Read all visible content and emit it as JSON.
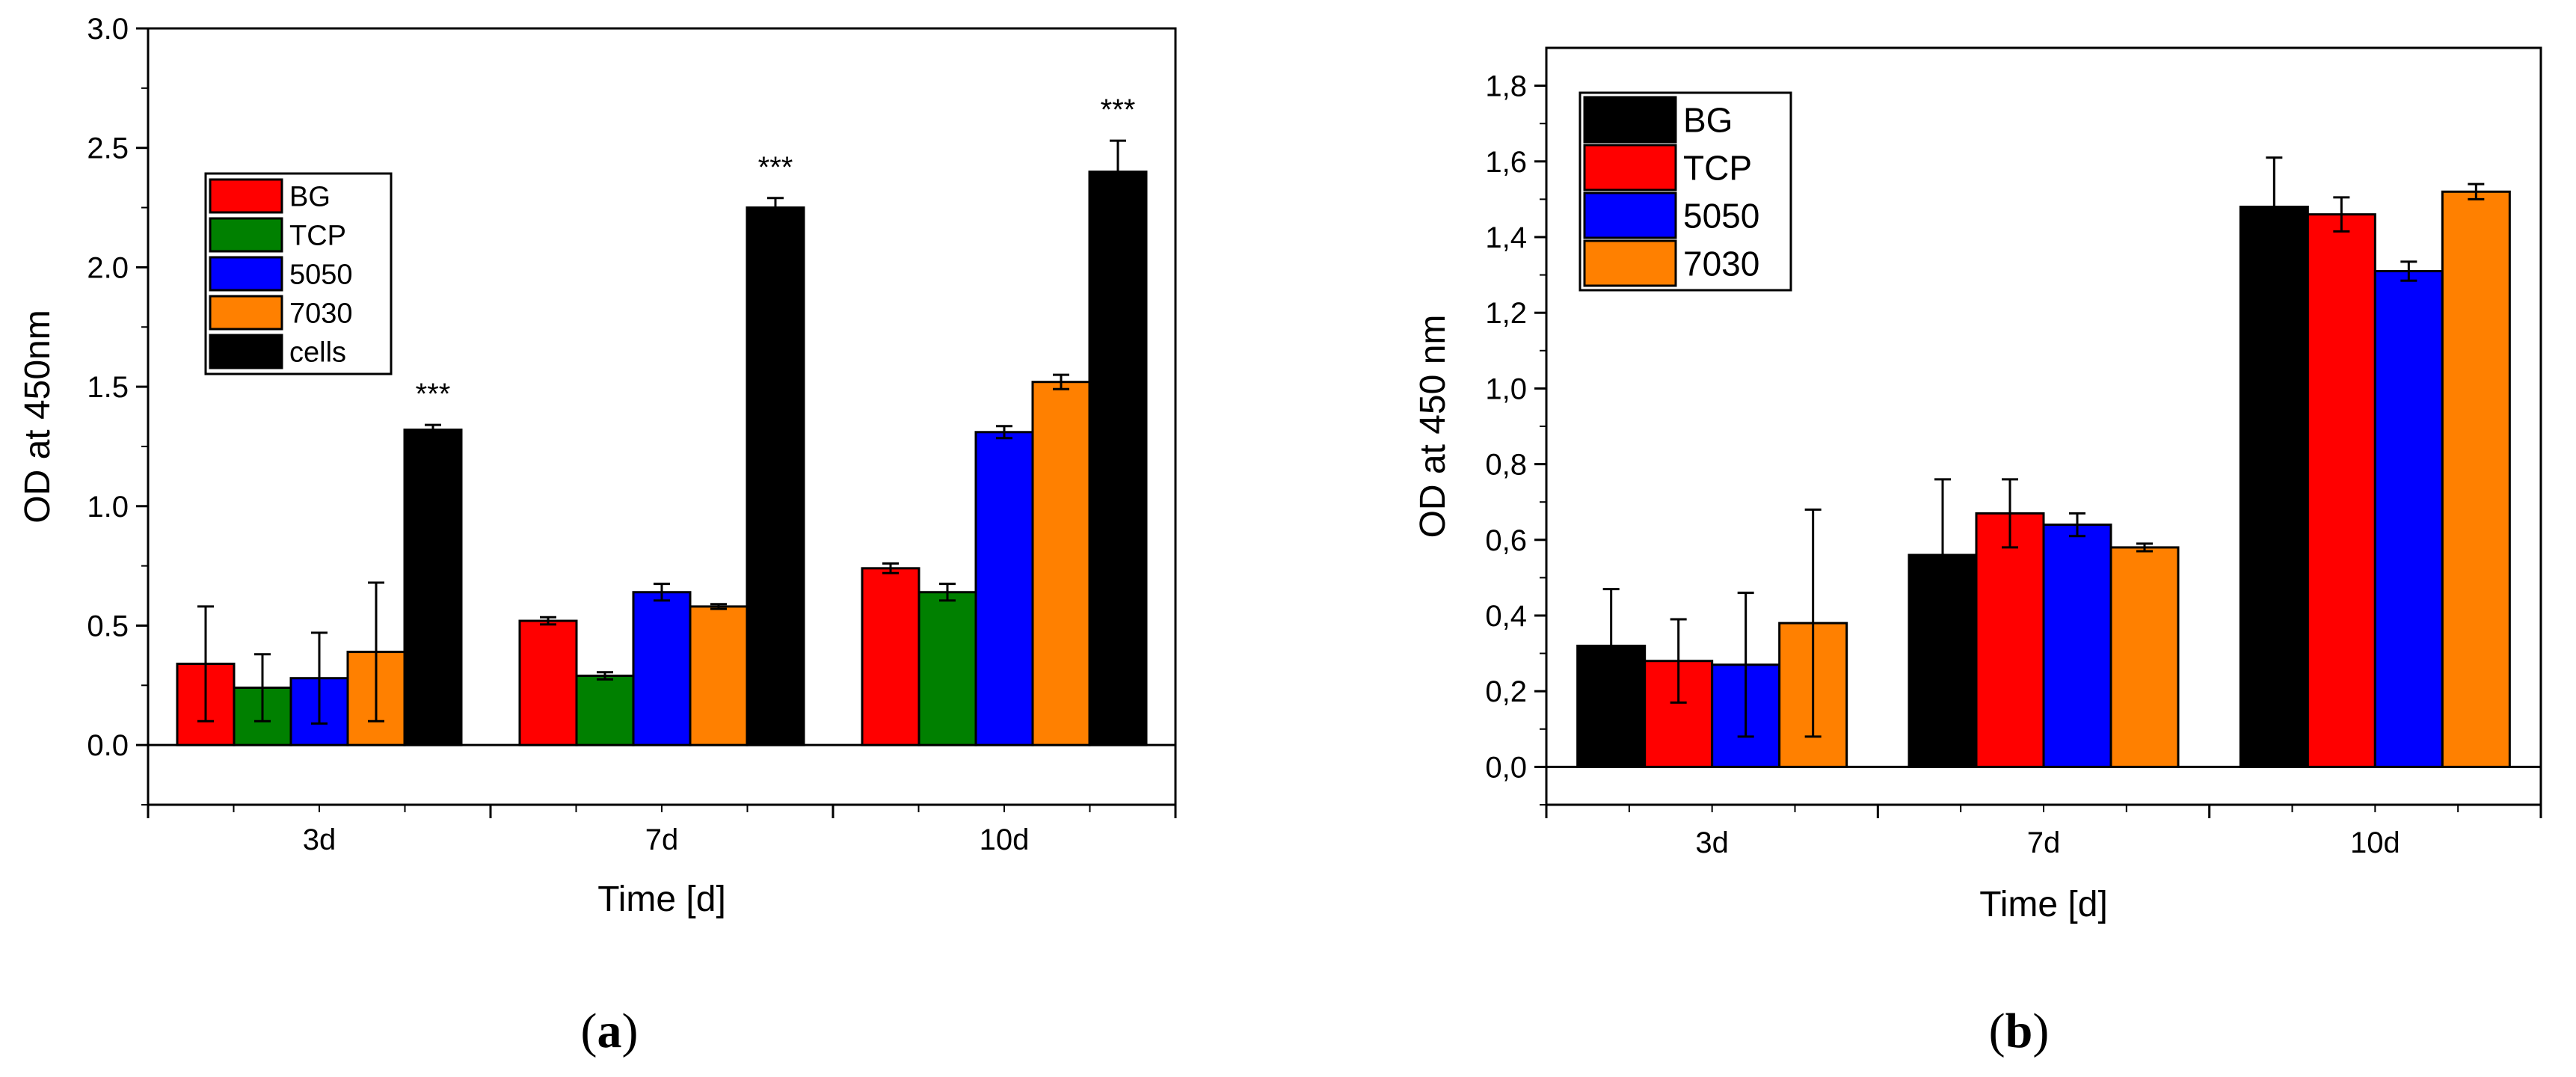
{
  "chart_data": [
    {
      "id": "a",
      "type": "bar",
      "panel_label": "a",
      "xlabel": "Time [d]",
      "ylabel": "OD at 450nm",
      "categories": [
        "3d",
        "7d",
        "10d"
      ],
      "ylim": [
        -0.25,
        3.0
      ],
      "yticks": [
        0.0,
        0.5,
        1.0,
        1.5,
        2.0,
        2.5,
        3.0
      ],
      "ytick_labels": [
        "0.0",
        "0.5",
        "1.0",
        "1.5",
        "2.0",
        "2.5",
        "3.0"
      ],
      "legend_position": "upper-left",
      "series": [
        {
          "name": "BG",
          "color": "#ff0000",
          "values": [
            0.34,
            0.52,
            0.74
          ],
          "errors": [
            0.24,
            0.015,
            0.02
          ]
        },
        {
          "name": "TCP",
          "color": "#008000",
          "values": [
            0.24,
            0.29,
            0.64
          ],
          "errors": [
            0.14,
            0.015,
            0.035
          ]
        },
        {
          "name": "5050",
          "color": "#0000ff",
          "values": [
            0.28,
            0.64,
            1.31
          ],
          "errors": [
            0.19,
            0.035,
            0.025
          ]
        },
        {
          "name": "7030",
          "color": "#ff8000",
          "values": [
            0.39,
            0.58,
            1.52
          ],
          "errors": [
            0.29,
            0.01,
            0.03
          ]
        },
        {
          "name": "cells",
          "color": "#000000",
          "values": [
            1.32,
            2.25,
            2.4
          ],
          "errors": [
            0.02,
            0.04,
            0.13
          ]
        }
      ],
      "annotations": [
        {
          "category": "3d",
          "series": "cells",
          "text": "***"
        },
        {
          "category": "7d",
          "series": "cells",
          "text": "***"
        },
        {
          "category": "10d",
          "series": "cells",
          "text": "***"
        }
      ]
    },
    {
      "id": "b",
      "type": "bar",
      "panel_label": "b",
      "xlabel": "Time [d]",
      "ylabel": "OD at 450 nm",
      "categories": [
        "3d",
        "7d",
        "10d"
      ],
      "ylim": [
        -0.1,
        1.9
      ],
      "yticks": [
        0.0,
        0.2,
        0.4,
        0.6,
        0.8,
        1.0,
        1.2,
        1.4,
        1.6,
        1.8
      ],
      "ytick_labels": [
        "0,0",
        "0,2",
        "0,4",
        "0,6",
        "0,8",
        "1,0",
        "1,2",
        "1,4",
        "1,6",
        "1,8"
      ],
      "legend_position": "upper-left",
      "series": [
        {
          "name": "BG",
          "color": "#000000",
          "values": [
            0.32,
            0.56,
            1.48
          ],
          "errors": [
            0.15,
            0.2,
            0.13
          ]
        },
        {
          "name": "TCP",
          "color": "#ff0000",
          "values": [
            0.28,
            0.67,
            1.46
          ],
          "errors": [
            0.11,
            0.09,
            0.045
          ]
        },
        {
          "name": "5050",
          "color": "#0000ff",
          "values": [
            0.27,
            0.64,
            1.31
          ],
          "errors": [
            0.19,
            0.03,
            0.025
          ]
        },
        {
          "name": "7030",
          "color": "#ff8000",
          "values": [
            0.38,
            0.58,
            1.52
          ],
          "errors": [
            0.3,
            0.01,
            0.02
          ]
        }
      ],
      "annotations": []
    }
  ]
}
